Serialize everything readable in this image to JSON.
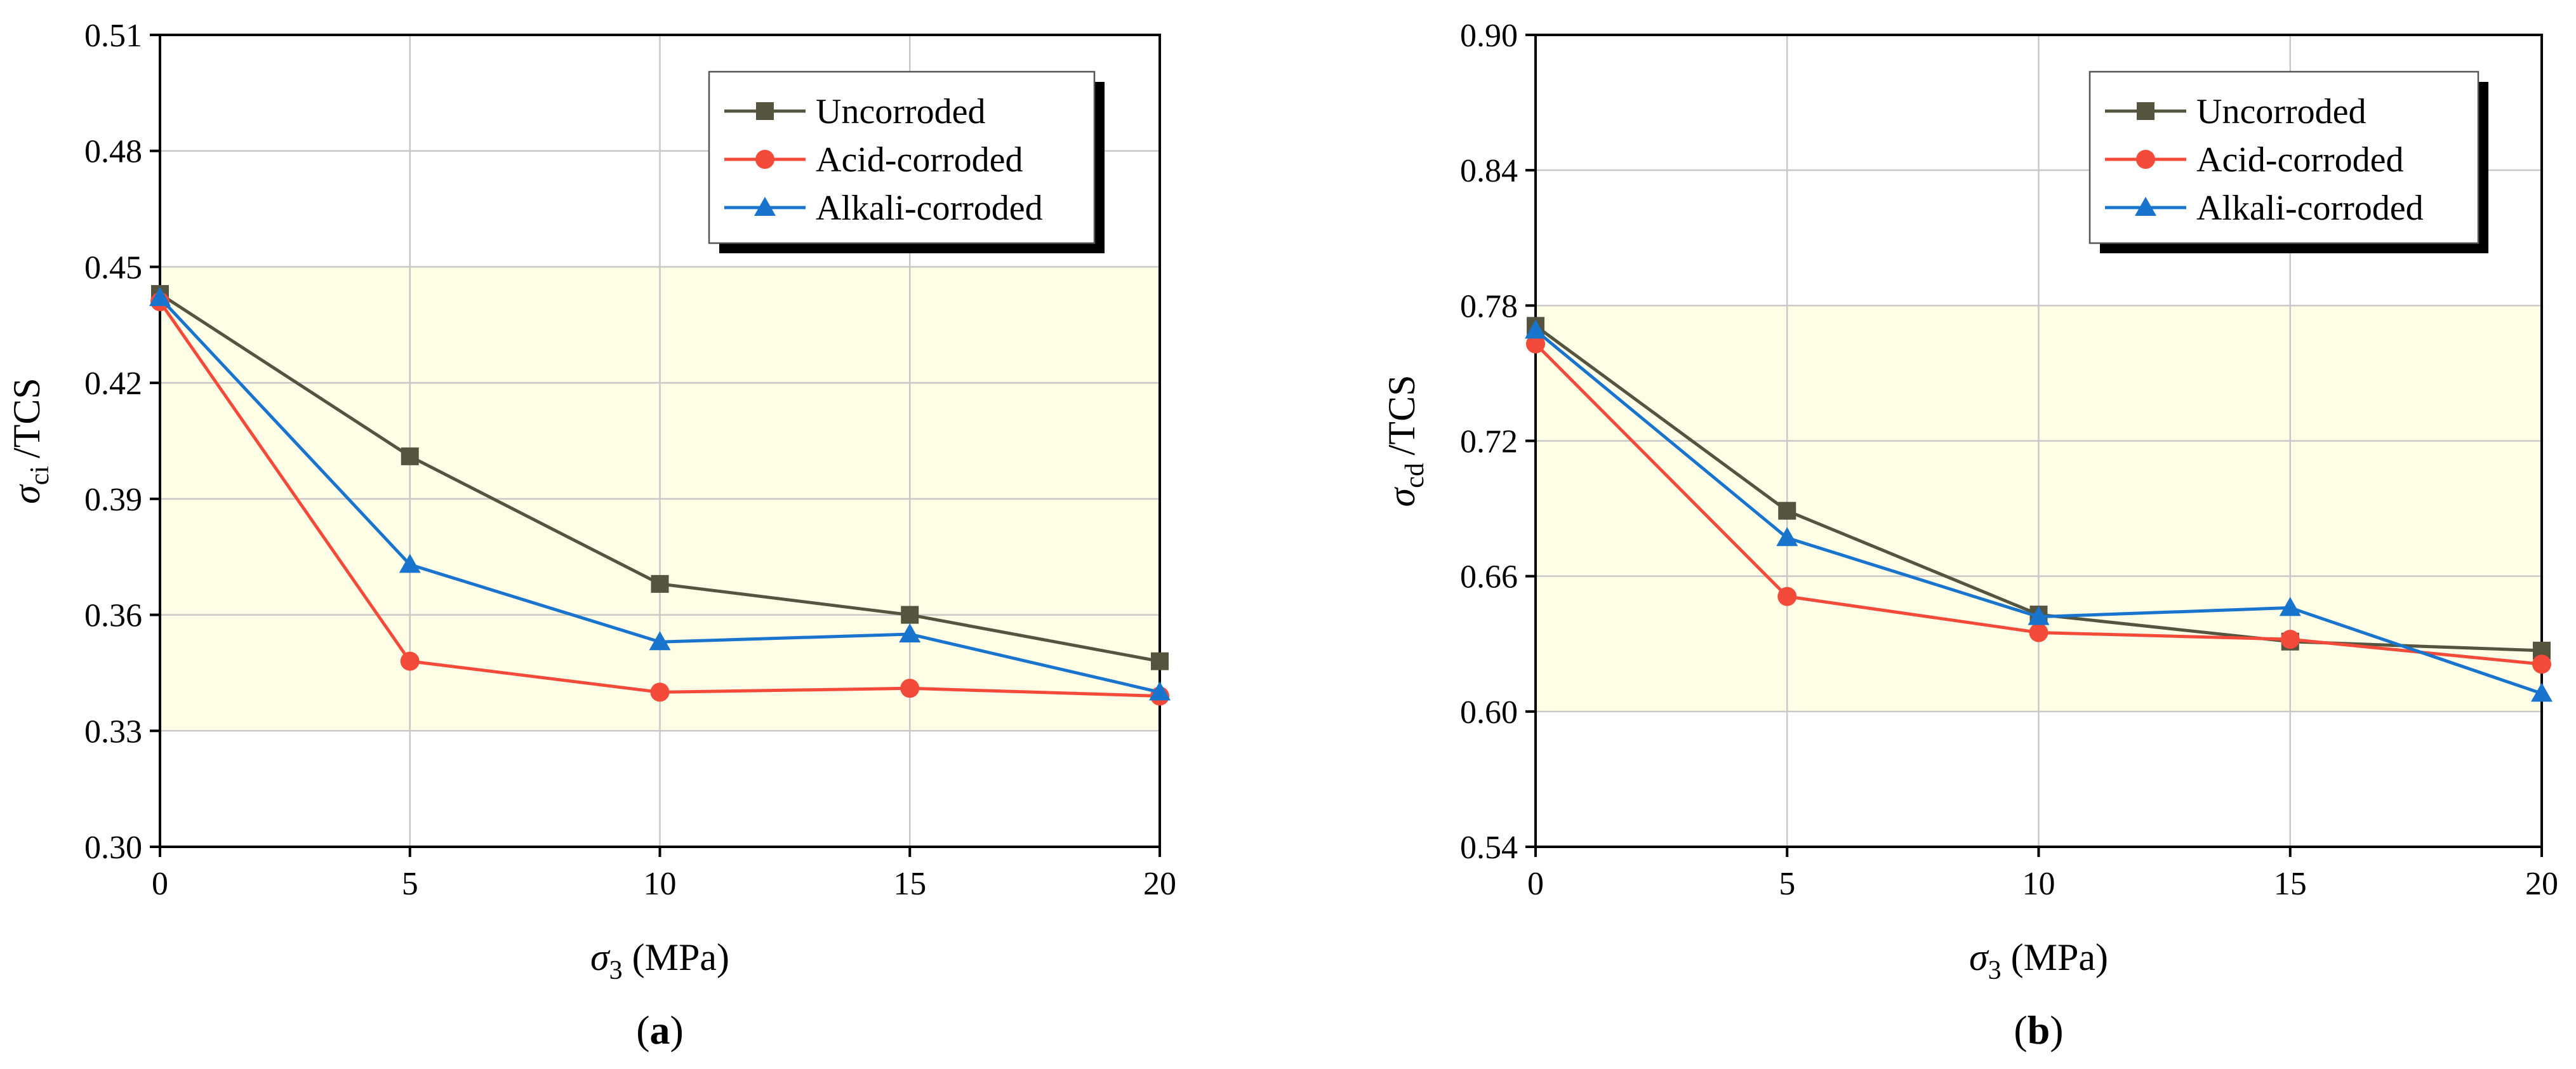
{
  "chart_data": [
    {
      "panel": "a",
      "panel_label": "a",
      "type": "line",
      "x": [
        0,
        5,
        10,
        15,
        20
      ],
      "xlabel": "σ3 (MPa)",
      "ylabel": "σci /TCS",
      "ylabel_symbol": "σ",
      "ylabel_sub": "ci",
      "ylabel_rest": "/TCS",
      "xlim": [
        0,
        20
      ],
      "ylim": [
        0.3,
        0.51
      ],
      "xticks": [
        "0",
        "5",
        "10",
        "15",
        "20"
      ],
      "yticks": [
        "0.30",
        "0.33",
        "0.36",
        "0.39",
        "0.42",
        "0.45",
        "0.48",
        "0.51"
      ],
      "shaded_band": [
        0.33,
        0.45
      ],
      "legend_position": "top-right",
      "series": [
        {
          "name": "Uncorroded",
          "color": "#54543f",
          "marker": "square",
          "values": [
            0.443,
            0.401,
            0.368,
            0.36,
            0.348
          ]
        },
        {
          "name": "Acid-corroded",
          "color": "#f34a3a",
          "marker": "circle",
          "values": [
            0.441,
            0.348,
            0.34,
            0.341,
            0.339
          ]
        },
        {
          "name": "Alkali-corroded",
          "color": "#1874cd",
          "marker": "triangle",
          "values": [
            0.442,
            0.373,
            0.353,
            0.355,
            0.34
          ]
        }
      ]
    },
    {
      "panel": "b",
      "panel_label": "b",
      "type": "line",
      "x": [
        0,
        5,
        10,
        15,
        20
      ],
      "xlabel": "σ3 (MPa)",
      "ylabel": "σcd /TCS",
      "ylabel_symbol": "σ",
      "ylabel_sub": "cd",
      "ylabel_rest": "/TCS",
      "xlim": [
        0,
        20
      ],
      "ylim": [
        0.54,
        0.9
      ],
      "xticks": [
        "0",
        "5",
        "10",
        "15",
        "20"
      ],
      "yticks": [
        "0.54",
        "0.60",
        "0.66",
        "0.72",
        "0.78",
        "0.84",
        "0.90"
      ],
      "shaded_band": [
        0.6,
        0.78
      ],
      "legend_position": "top-right",
      "series": [
        {
          "name": "Uncorroded",
          "color": "#54543f",
          "marker": "square",
          "values": [
            0.771,
            0.689,
            0.643,
            0.631,
            0.627
          ]
        },
        {
          "name": "Acid-corroded",
          "color": "#f34a3a",
          "marker": "circle",
          "values": [
            0.763,
            0.651,
            0.635,
            0.632,
            0.621
          ]
        },
        {
          "name": "Alkali-corroded",
          "color": "#1874cd",
          "marker": "triangle",
          "values": [
            0.769,
            0.677,
            0.642,
            0.646,
            0.608
          ]
        }
      ]
    }
  ],
  "colors": {
    "band": "#fefde6",
    "grid": "#c8c8c8",
    "axis": "#000000"
  },
  "xlabel_parts": {
    "symbol": "σ",
    "sub": "3",
    "rest": " (MPa)"
  }
}
